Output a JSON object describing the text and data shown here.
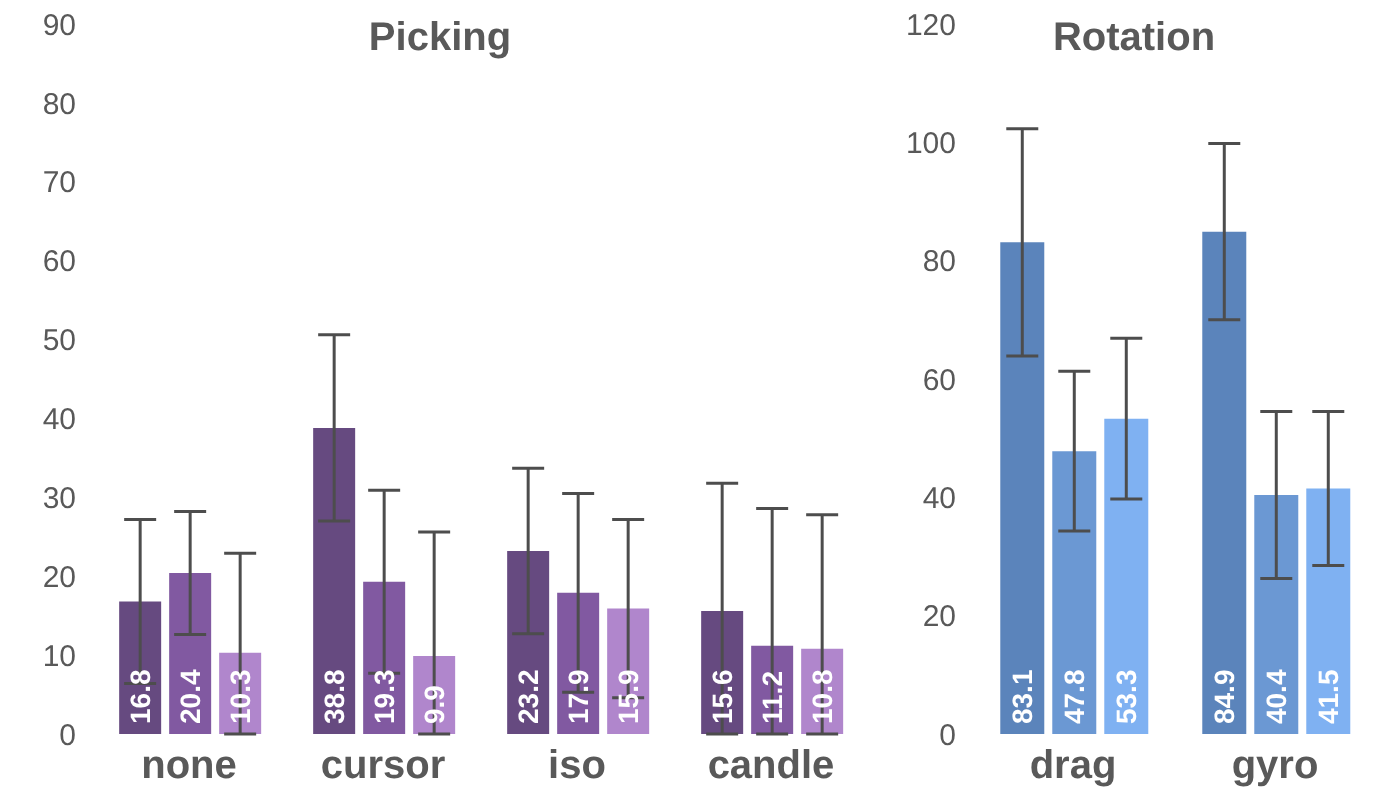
{
  "chart_data": [
    {
      "type": "bar",
      "title": "Picking",
      "categories": [
        "none",
        "cursor",
        "iso",
        "candle"
      ],
      "series": [
        {
          "color": "#664a80",
          "values": [
            16.8,
            38.8,
            23.2,
            15.6
          ],
          "errors": [
            10.4,
            11.8,
            10.5,
            [
              0,
              31.8
            ]
          ]
        },
        {
          "color": "#8159a1",
          "values": [
            20.4,
            19.3,
            17.9,
            11.2
          ],
          "errors": [
            7.8,
            11.6,
            12.6,
            [
              0,
              28.6
            ]
          ]
        },
        {
          "color": "#b086cc",
          "values": [
            10.3,
            9.9,
            15.9,
            10.8
          ],
          "errors": [
            [
              0,
              22.9
            ],
            [
              0,
              25.6
            ],
            11.3,
            [
              0,
              27.8
            ]
          ]
        }
      ],
      "ylim": [
        0,
        90
      ],
      "yticks": [
        0,
        10,
        20,
        30,
        40,
        50,
        60,
        70,
        80,
        90
      ],
      "data_labels": true,
      "grid": false,
      "legend": false
    },
    {
      "type": "bar",
      "title": "Rotation",
      "categories": [
        "drag",
        "gyro"
      ],
      "series": [
        {
          "color": "#5b84bb",
          "values": [
            83.1,
            84.9
          ],
          "errors": [
            19.2,
            14.9
          ]
        },
        {
          "color": "#6b98d3",
          "values": [
            47.8,
            40.4
          ],
          "errors": [
            13.5,
            14.1
          ]
        },
        {
          "color": "#7fb1f2",
          "values": [
            53.3,
            41.5
          ],
          "errors": [
            13.6,
            13.0
          ]
        }
      ],
      "ylim": [
        0,
        120
      ],
      "yticks": [
        0,
        20,
        40,
        60,
        80,
        100,
        120
      ],
      "data_labels": true,
      "grid": false,
      "legend": false
    }
  ]
}
